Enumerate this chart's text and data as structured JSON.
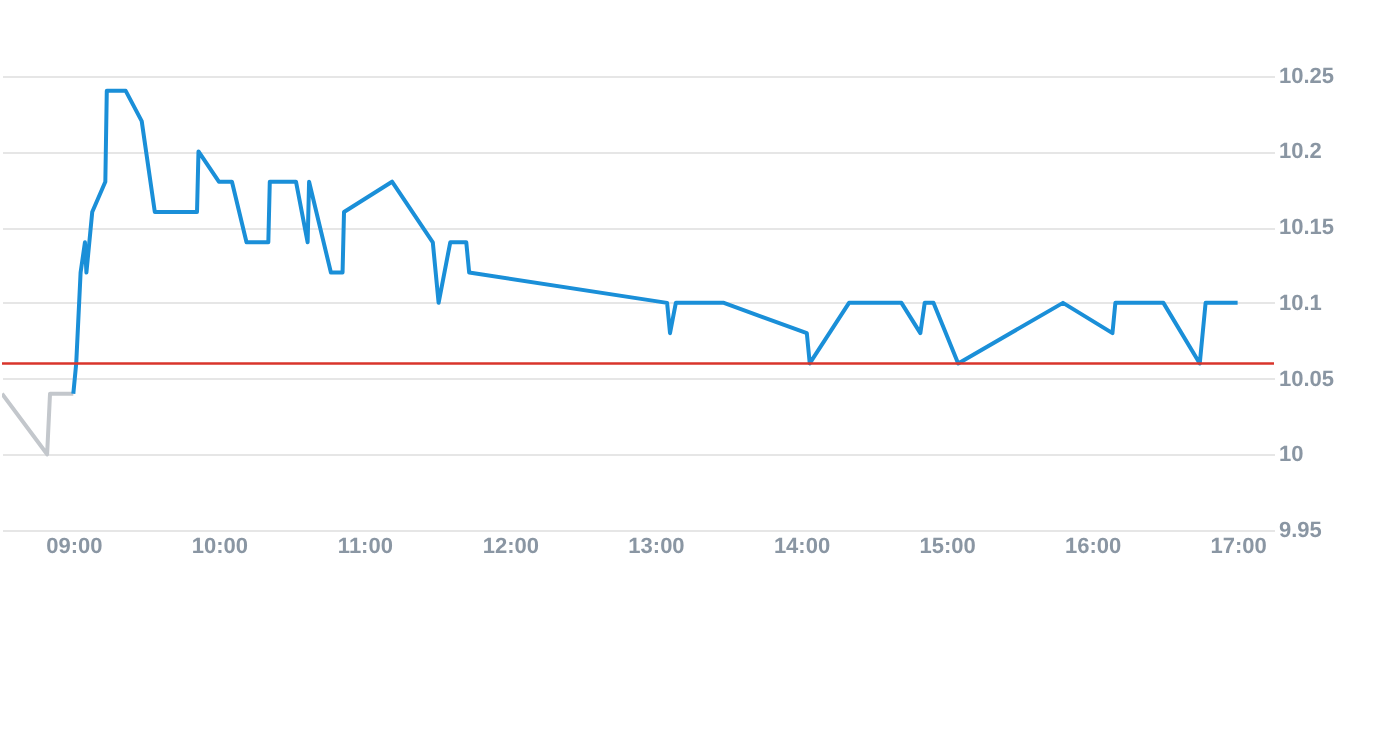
{
  "chart_data": {
    "type": "line",
    "xlim": [
      8.51,
      17.25
    ],
    "ylim": [
      9.95,
      10.3
    ],
    "xticks": [
      {
        "value": 9,
        "label": "09:00"
      },
      {
        "value": 10,
        "label": "10:00"
      },
      {
        "value": 11,
        "label": "11:00"
      },
      {
        "value": 12,
        "label": "12:00"
      },
      {
        "value": 13,
        "label": "13:00"
      },
      {
        "value": 14,
        "label": "14:00"
      },
      {
        "value": 15,
        "label": "15:00"
      },
      {
        "value": 16,
        "label": "16:00"
      },
      {
        "value": 17,
        "label": "17:00"
      }
    ],
    "yticks": [
      9.95,
      10,
      10.05,
      10.1,
      10.15,
      10.2,
      10.25
    ],
    "grid": "y",
    "marker": "none",
    "line_style": "solid",
    "series": [
      {
        "color": "#c3c7cc",
        "x": [
          8.51,
          8.82,
          8.84,
          9.0
        ],
        "values": [
          10.04,
          10.0,
          10.04,
          10.04
        ]
      },
      {
        "color": "#1a8fd8",
        "x": [
          9.0,
          9.02,
          9.05,
          9.08,
          9.09,
          9.13,
          9.22,
          9.23,
          9.36,
          9.47,
          9.56,
          9.85,
          9.86,
          10.0,
          10.09,
          10.19,
          10.34,
          10.35,
          10.53,
          10.61,
          10.62,
          10.77,
          10.85,
          10.86,
          11.19,
          11.47,
          11.51,
          11.59,
          11.7,
          11.72,
          13.08,
          13.1,
          13.14,
          13.47,
          14.04,
          14.06,
          14.33,
          14.69,
          14.82,
          14.85,
          14.91,
          15.08,
          15.8,
          16.14,
          16.16,
          16.49,
          16.74,
          16.78,
          17.0
        ],
        "values": [
          10.04,
          10.06,
          10.12,
          10.14,
          10.12,
          10.16,
          10.18,
          10.24,
          10.24,
          10.22,
          10.16,
          10.16,
          10.2,
          10.18,
          10.18,
          10.14,
          10.14,
          10.18,
          10.18,
          10.14,
          10.18,
          10.12,
          10.12,
          10.16,
          10.18,
          10.14,
          10.1,
          10.14,
          10.14,
          10.12,
          10.1,
          10.08,
          10.1,
          10.1,
          10.08,
          10.06,
          10.1,
          10.1,
          10.08,
          10.1,
          10.1,
          10.06,
          10.1,
          10.08,
          10.1,
          10.1,
          10.06,
          10.1,
          10.1
        ]
      }
    ],
    "ref_lines": [
      {
        "axis": "y",
        "value": 10.06,
        "color": "#d9342b"
      }
    ]
  }
}
